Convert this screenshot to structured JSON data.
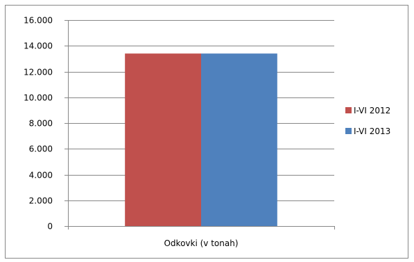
{
  "chart_data": {
    "type": "bar",
    "categories": [
      "Odkovki (v tonah)"
    ],
    "series": [
      {
        "name": "I-VI 2012",
        "values": [
          13400
        ],
        "color": "#c0504d"
      },
      {
        "name": "I-VI 2013",
        "values": [
          13400
        ],
        "color": "#4f81bd"
      }
    ],
    "ylim": [
      0,
      16000
    ],
    "yticks": [
      0,
      2000,
      4000,
      6000,
      8000,
      10000,
      12000,
      14000,
      16000
    ],
    "ytick_labels": [
      "0",
      "2.000",
      "4.000",
      "6.000",
      "8.000",
      "10.000",
      "12.000",
      "14.000",
      "16.000"
    ],
    "grid": true,
    "legend_position": "right",
    "title": "",
    "xlabel": "",
    "ylabel": ""
  }
}
